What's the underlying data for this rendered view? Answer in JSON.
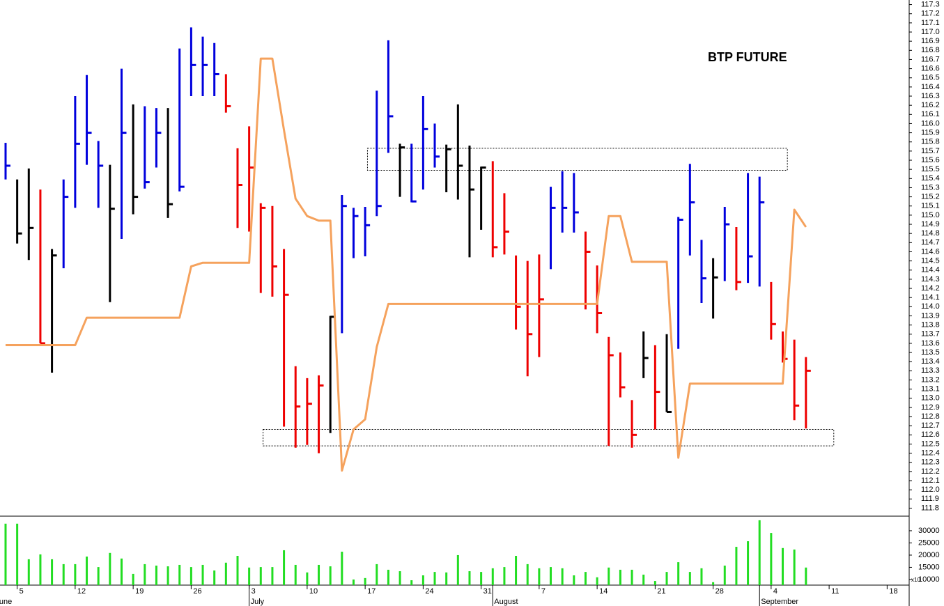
{
  "chart_data": {
    "type": "ohlc",
    "title": "BTP FUTURE",
    "high": [
      115.79,
      115.39,
      115.51,
      115.28,
      114.63,
      115.39,
      116.3,
      116.53,
      115.81,
      115.55,
      116.6,
      116.21,
      116.19,
      116.17,
      116.17,
      116.82,
      117.05,
      116.95,
      116.88,
      116.54,
      115.73,
      115.97,
      115.13,
      115.1,
      114.63,
      113.35,
      113.22,
      113.25,
      113.9,
      115.22,
      115.08,
      115.09,
      116.36,
      116.91,
      115.78,
      115.78,
      116.3,
      116.0,
      115.77,
      116.21,
      115.76,
      115.53,
      115.59,
      115.24,
      114.56,
      114.5,
      114.57,
      115.31,
      115.48,
      115.46,
      114.82,
      114.45,
      113.67,
      113.5,
      112.98,
      113.73,
      113.58,
      113.7,
      114.98,
      115.56,
      114.73,
      114.53,
      115.09,
      114.87,
      115.46,
      115.42,
      114.27,
      113.73,
      113.64,
      113.45
    ],
    "low": [
      115.39,
      114.69,
      114.51,
      113.6,
      113.28,
      114.42,
      115.08,
      115.55,
      115.08,
      114.05,
      114.74,
      115.01,
      115.29,
      115.52,
      114.97,
      115.26,
      116.3,
      116.3,
      116.3,
      116.12,
      114.86,
      114.82,
      114.15,
      114.11,
      112.69,
      112.46,
      112.49,
      112.4,
      112.62,
      113.71,
      114.53,
      114.55,
      114.99,
      115.68,
      115.2,
      115.14,
      115.28,
      115.52,
      115.25,
      115.17,
      114.54,
      114.84,
      114.54,
      114.57,
      113.75,
      113.24,
      113.45,
      114.41,
      114.81,
      114.81,
      113.97,
      113.71,
      112.48,
      113.01,
      112.46,
      113.22,
      112.66,
      112.85,
      113.54,
      114.56,
      114.04,
      113.87,
      114.28,
      114.18,
      114.26,
      114.22,
      113.64,
      113.39,
      112.76,
      112.67
    ],
    "close": [
      115.54,
      114.8,
      114.86,
      113.6,
      114.56,
      115.2,
      115.78,
      115.9,
      115.54,
      115.07,
      115.9,
      115.2,
      115.36,
      115.9,
      115.12,
      115.31,
      116.64,
      116.64,
      116.54,
      116.19,
      115.33,
      115.52,
      115.08,
      114.44,
      114.13,
      112.91,
      112.94,
      113.14,
      113.89,
      115.1,
      114.99,
      114.89,
      115.1,
      116.08,
      115.74,
      115.15,
      115.94,
      115.64,
      115.72,
      115.54,
      115.28,
      115.52,
      114.65,
      114.82,
      114.0,
      113.7,
      114.08,
      115.08,
      115.08,
      115.03,
      114.6,
      113.93,
      113.47,
      113.12,
      112.6,
      113.44,
      113.07,
      112.85,
      114.95,
      115.14,
      114.31,
      114.32,
      114.9,
      114.27,
      114.55,
      115.14,
      113.81,
      113.43,
      112.92,
      113.3
    ],
    "colors": [
      "#0000dd",
      "#000000",
      "#000000",
      "#ee0000",
      "#000000",
      "#0000dd",
      "#0000dd",
      "#0000dd",
      "#0000dd",
      "#000000",
      "#0000dd",
      "#000000",
      "#0000dd",
      "#0000dd",
      "#000000",
      "#0000dd",
      "#0000dd",
      "#0000dd",
      "#0000dd",
      "#ee0000",
      "#ee0000",
      "#ee0000",
      "#ee0000",
      "#ee0000",
      "#ee0000",
      "#ee0000",
      "#ee0000",
      "#ee0000",
      "#000000",
      "#0000dd",
      "#0000dd",
      "#0000dd",
      "#0000dd",
      "#0000dd",
      "#000000",
      "#0000dd",
      "#0000dd",
      "#0000dd",
      "#000000",
      "#000000",
      "#000000",
      "#000000",
      "#ee0000",
      "#ee0000",
      "#ee0000",
      "#ee0000",
      "#ee0000",
      "#0000dd",
      "#0000dd",
      "#0000dd",
      "#ee0000",
      "#ee0000",
      "#ee0000",
      "#ee0000",
      "#ee0000",
      "#000000",
      "#ee0000",
      "#000000",
      "#0000dd",
      "#0000dd",
      "#0000dd",
      "#000000",
      "#0000dd",
      "#ee0000",
      "#0000dd",
      "#0000dd",
      "#ee0000",
      "#ee0000",
      "#ee0000",
      "#ee0000"
    ],
    "line": {
      "color": "#f5a25d",
      "values": [
        113.58,
        113.58,
        113.58,
        113.58,
        113.58,
        113.58,
        113.58,
        113.88,
        113.88,
        113.88,
        113.88,
        113.88,
        113.88,
        113.88,
        113.88,
        113.88,
        114.44,
        114.48,
        114.48,
        114.48,
        114.48,
        114.48,
        116.71,
        116.71,
        115.93,
        115.18,
        114.99,
        114.94,
        114.94,
        112.21,
        112.66,
        112.77,
        113.56,
        114.03,
        114.03,
        114.03,
        114.03,
        114.03,
        114.03,
        114.03,
        114.03,
        114.03,
        114.03,
        114.03,
        114.03,
        114.03,
        114.03,
        114.03,
        114.03,
        114.03,
        114.03,
        114.03,
        114.99,
        114.99,
        114.49,
        114.49,
        114.49,
        114.49,
        112.35,
        113.16,
        113.16,
        113.16,
        113.16,
        113.16,
        113.16,
        113.16,
        113.16,
        113.16,
        115.06,
        114.87
      ]
    },
    "zones": [
      {
        "low": 115.49,
        "high": 115.73,
        "from": 31.2,
        "to": 67.4
      },
      {
        "low": 112.48,
        "high": 112.66,
        "from": 22.2,
        "to": 71.4
      }
    ],
    "ylim": [
      111.72,
      117.35
    ],
    "yticks": [
      111.8,
      111.9,
      {
        "value": 112,
        "label": "112.0"
      },
      112.1,
      112.2,
      112.3,
      112.4,
      112.5,
      112.6,
      112.7,
      112.8,
      112.9,
      {
        "value": 113,
        "label": "113.0"
      },
      113.1,
      113.2,
      113.3,
      113.4,
      113.5,
      113.6,
      113.7,
      113.8,
      113.9,
      {
        "value": 114,
        "label": "114.0"
      },
      114.1,
      114.2,
      114.3,
      114.4,
      114.5,
      114.6,
      114.7,
      114.8,
      114.9,
      {
        "value": 115,
        "label": "115.0"
      },
      115.1,
      115.2,
      115.3,
      115.4,
      115.5,
      115.6,
      115.7,
      115.8,
      115.9,
      {
        "value": 116,
        "label": "116.0"
      },
      116.1,
      116.2,
      116.3,
      116.4,
      116.5,
      116.6,
      116.7,
      116.8,
      116.9,
      {
        "value": 117,
        "label": "117.0"
      },
      117.1,
      117.2,
      117.3
    ],
    "xlim": [
      -0.48,
      77.9
    ],
    "xticks": [
      {
        "value": 1,
        "label": "5"
      },
      {
        "value": 6,
        "label": "12"
      },
      {
        "value": 11,
        "label": "19"
      },
      {
        "value": 16,
        "label": "26"
      },
      {
        "value": 21,
        "label": "3"
      },
      {
        "value": 26,
        "label": "10"
      },
      {
        "value": 31,
        "label": "17"
      },
      {
        "value": 36,
        "label": "24"
      },
      {
        "value": 41,
        "label": "31"
      },
      {
        "value": 46,
        "label": "7"
      },
      {
        "value": 51,
        "label": "14"
      },
      {
        "value": 56,
        "label": "21"
      },
      {
        "value": 61,
        "label": "28"
      },
      {
        "value": 66,
        "label": "4"
      },
      {
        "value": 71,
        "label": "11"
      },
      {
        "value": 76,
        "label": "18"
      }
    ],
    "month_ticks": [
      {
        "value": -1,
        "label": "June"
      },
      {
        "value": 21,
        "label": "July"
      },
      {
        "value": 42,
        "label": "August"
      },
      {
        "value": 65,
        "label": "September"
      }
    ],
    "volume": {
      "color": "#22dd22",
      "values": [
        32900,
        32900,
        18300,
        20300,
        18300,
        16300,
        16300,
        19400,
        15100,
        20900,
        18600,
        12300,
        16300,
        15700,
        15400,
        16000,
        15100,
        16000,
        13700,
        16900,
        19700,
        14900,
        15100,
        15100,
        22000,
        16000,
        12900,
        16000,
        15400,
        21400,
        10000,
        10600,
        16300,
        14000,
        13400,
        9700,
        11700,
        13100,
        12900,
        20000,
        13400,
        13100,
        14600,
        15100,
        19700,
        16300,
        14600,
        15100,
        14600,
        11700,
        13100,
        10900,
        14900,
        14000,
        14000,
        12000,
        9400,
        13100,
        17100,
        13100,
        14600,
        8900,
        15700,
        23400,
        25700,
        34300,
        29100,
        22900,
        22300,
        14900
      ],
      "ylim": [
        7700,
        35700
      ],
      "yticks": [
        10000,
        15000,
        20000,
        25000,
        30000
      ],
      "axis_note": "x10"
    }
  }
}
